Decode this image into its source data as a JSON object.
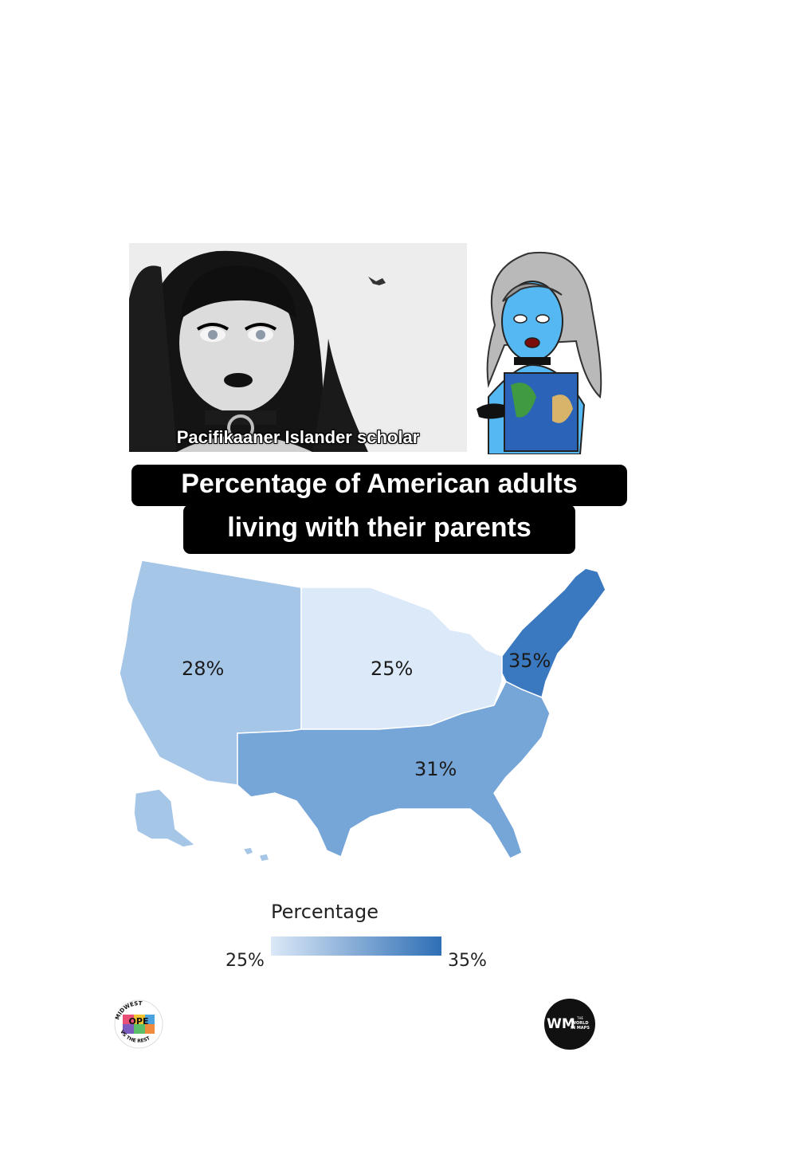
{
  "photo": {
    "caption": "Pacifikaaner Islander scholar"
  },
  "title": {
    "line1": "Percentage of American adults",
    "line2": "living with their parents"
  },
  "map": {
    "regions": [
      {
        "name": "West",
        "label": "28%",
        "value": 28,
        "color": "#a6c6e8"
      },
      {
        "name": "Midwest",
        "label": "25%",
        "value": 25,
        "color": "#dce9f8"
      },
      {
        "name": "South",
        "label": "31%",
        "value": 31,
        "color": "#76a5d8"
      },
      {
        "name": "Northeast",
        "label": "35%",
        "value": 35,
        "color": "#3a78bf"
      }
    ]
  },
  "legend": {
    "title": "Percentage",
    "min_label": "25%",
    "max_label": "35%",
    "min_color": "#dbe8f7",
    "max_color": "#2e6fb5"
  },
  "logos": {
    "left": {
      "top_text": "MIDWEST",
      "center_text": "OPE",
      "bottom_text": "VS THE REST"
    },
    "right": {
      "mark": "WM",
      "text_line1": "THE",
      "text_line2": "WORLD",
      "text_line3": "IN MAPS"
    }
  }
}
